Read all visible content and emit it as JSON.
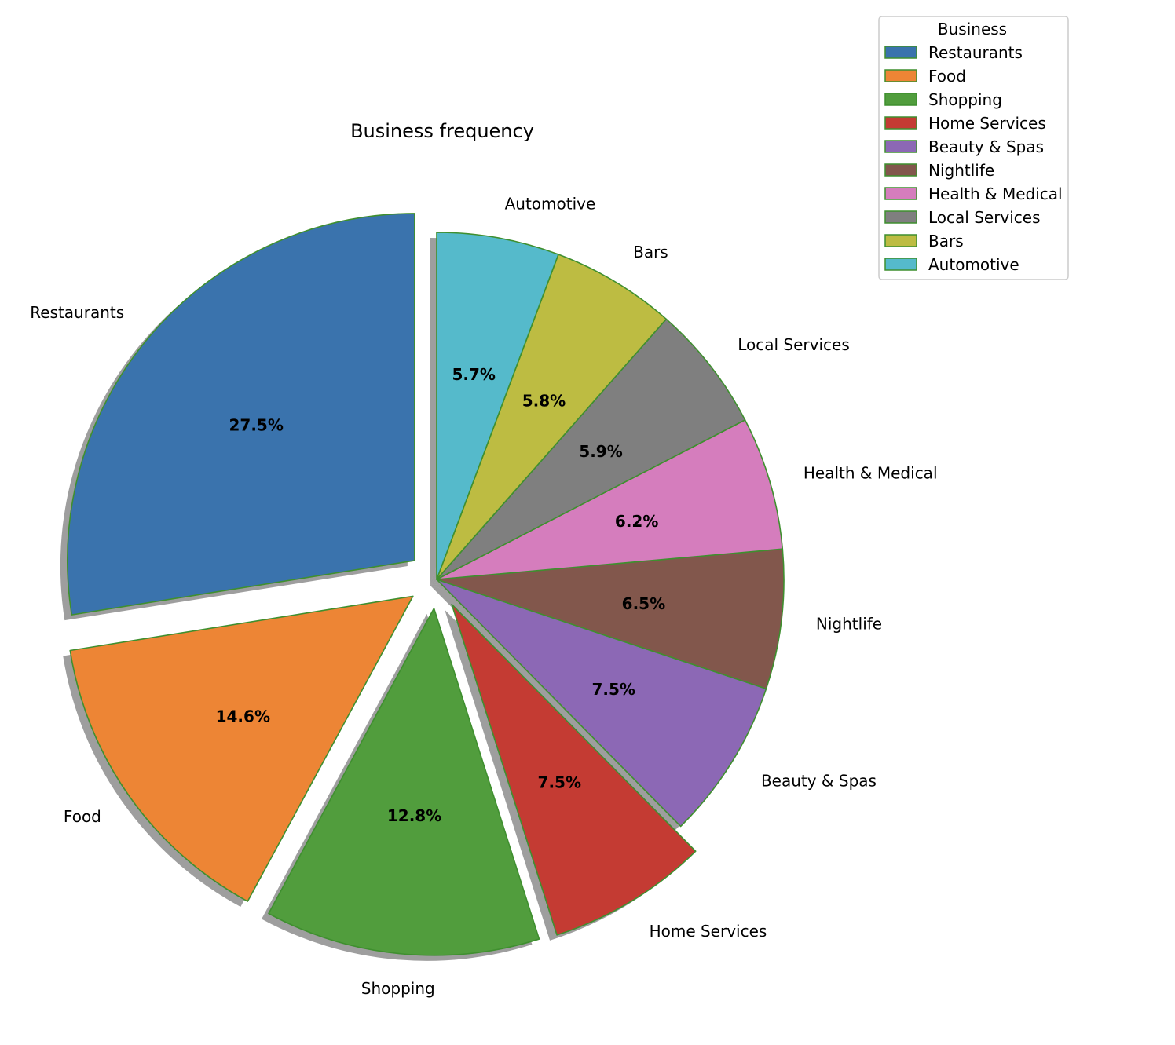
{
  "chart_data": {
    "type": "pie",
    "title": "Business frequency",
    "categories": [
      "Restaurants",
      "Food",
      "Shopping",
      "Home Services",
      "Beauty & Spas",
      "Nightlife",
      "Health & Medical",
      "Local Services",
      "Bars",
      "Automotive"
    ],
    "values": [
      27.5,
      14.6,
      12.8,
      7.5,
      7.5,
      6.5,
      6.2,
      5.9,
      5.8,
      5.7
    ],
    "value_labels": [
      "27.5%",
      "14.6%",
      "12.8%",
      "7.5%",
      "7.5%",
      "6.5%",
      "6.2%",
      "5.9%",
      "5.8%",
      "5.7%"
    ],
    "colors": [
      "#3a73ad",
      "#ed8535",
      "#519d3d",
      "#c43b33",
      "#8c68b5",
      "#82574c",
      "#d57dbd",
      "#7f7f7f",
      "#bdbc42",
      "#55bacb"
    ],
    "edge_color": "#3f8f2f",
    "exploded": [
      true,
      true,
      true,
      true,
      false,
      false,
      false,
      false,
      false,
      false
    ],
    "shadow": true,
    "start_angle": 90,
    "counterclockwise": true,
    "legend": {
      "title": "Business",
      "placement": "top-right",
      "entries": [
        "Restaurants",
        "Food",
        "Shopping",
        "Home Services",
        "Beauty & Spas",
        "Nightlife",
        "Health & Medical",
        "Local Services",
        "Bars",
        "Automotive"
      ]
    }
  }
}
